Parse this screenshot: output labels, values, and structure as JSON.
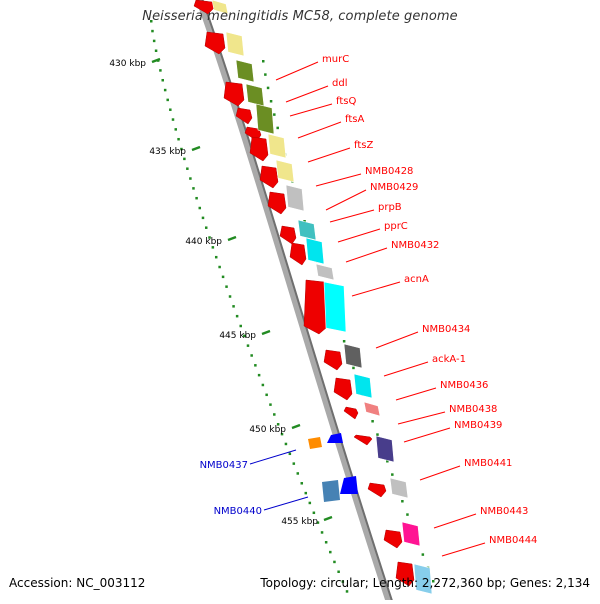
{
  "title": "Neisseria meningitidis MC58, complete genome",
  "footer": {
    "accession": "Accession: NC_003112",
    "topology": "Topology: circular; Length: 2,272,360 bp; Genes: 2,134"
  },
  "ruler": {
    "unit": "kbp",
    "ticks": [
      "430 kbp",
      "435 kbp",
      "440 kbp",
      "445 kbp",
      "450 kbp",
      "455 kbp"
    ]
  },
  "genes_right": [
    {
      "name": "murC",
      "color": "#ff0000"
    },
    {
      "name": "ddl",
      "color": "#ff0000"
    },
    {
      "name": "ftsQ",
      "color": "#ff0000"
    },
    {
      "name": "ftsA",
      "color": "#ff0000"
    },
    {
      "name": "ftsZ",
      "color": "#ff0000"
    },
    {
      "name": "NMB0428",
      "color": "#ff0000"
    },
    {
      "name": "NMB0429",
      "color": "#ff0000"
    },
    {
      "name": "prpB",
      "color": "#ff0000"
    },
    {
      "name": "pprC",
      "color": "#ff0000"
    },
    {
      "name": "NMB0432",
      "color": "#ff0000"
    },
    {
      "name": "acnA",
      "color": "#ff0000"
    },
    {
      "name": "NMB0434",
      "color": "#ff0000"
    },
    {
      "name": "ackA-1",
      "color": "#ff0000"
    },
    {
      "name": "NMB0436",
      "color": "#ff0000"
    },
    {
      "name": "NMB0438",
      "color": "#ff0000"
    },
    {
      "name": "NMB0439",
      "color": "#ff0000"
    },
    {
      "name": "NMB0441",
      "color": "#ff0000"
    },
    {
      "name": "NMB0443",
      "color": "#ff0000"
    },
    {
      "name": "NMB0444",
      "color": "#ff0000"
    }
  ],
  "genes_left": [
    {
      "name": "NMB0437",
      "color": "#0000cc"
    },
    {
      "name": "NMB0440",
      "color": "#0000cc"
    }
  ]
}
